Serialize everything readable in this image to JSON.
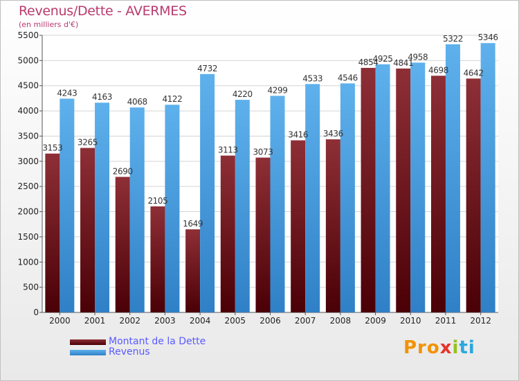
{
  "title": "Revenus/Dette - AVERMES",
  "subtitle": "(en milliers d'€)",
  "legend": {
    "dette": "Montant de la Dette",
    "revenus": "Revenus"
  },
  "logo": {
    "part1": "Pro",
    "part2": "x",
    "part3": "i",
    "part4": "ti"
  },
  "colors": {
    "dette": "#7a1a1f",
    "revenus": "#4a9ee0",
    "title": "#b93a6e"
  },
  "chart_data": {
    "type": "bar",
    "title": "Revenus/Dette - AVERMES",
    "ylabel": "",
    "xlabel": "",
    "ylim": [
      0,
      5500
    ],
    "yticks": [
      0,
      500,
      1000,
      1500,
      2000,
      2500,
      3000,
      3500,
      4000,
      4500,
      5000,
      5500
    ],
    "grid": true,
    "legend_position": "bottom-left",
    "categories": [
      "2000",
      "2001",
      "2002",
      "2003",
      "2004",
      "2005",
      "2006",
      "2007",
      "2008",
      "2009",
      "2010",
      "2011",
      "2012"
    ],
    "series": [
      {
        "name": "Montant de la Dette",
        "values": [
          3153,
          3265,
          2690,
          2105,
          1649,
          3113,
          3073,
          3416,
          3436,
          4854,
          4841,
          4698,
          4642
        ]
      },
      {
        "name": "Revenus",
        "values": [
          4243,
          4163,
          4068,
          4122,
          4732,
          4220,
          4299,
          4533,
          4546,
          4925,
          4958,
          5322,
          5346
        ]
      }
    ]
  }
}
